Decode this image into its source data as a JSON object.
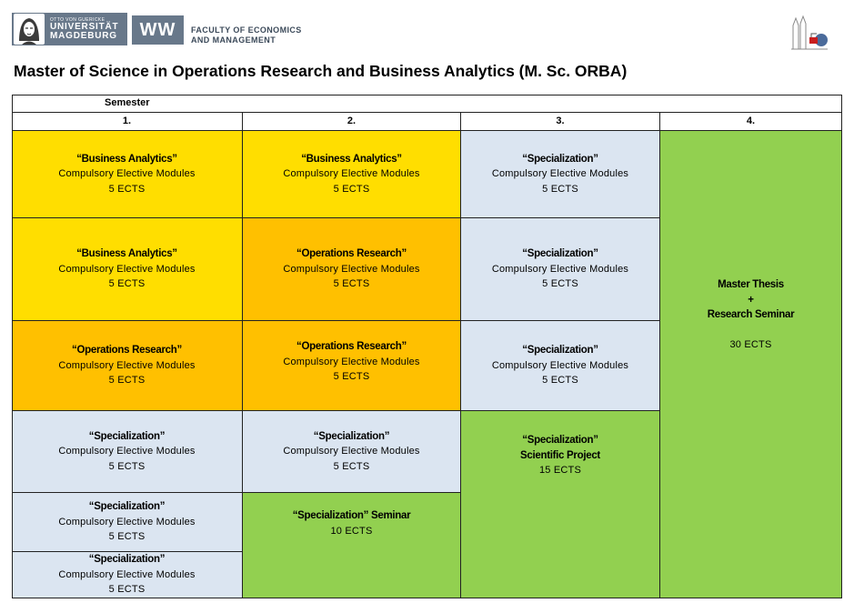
{
  "header": {
    "uni_logo": {
      "line1": "OTTO VON GUERICKE",
      "line2": "UNIVERSITÄT",
      "line3": "MAGDEBURG"
    },
    "ww_logo": "WW",
    "faculty_line1": "FACULTY OF ECONOMICS",
    "faculty_line2": "AND MANAGEMENT",
    "building_icon": "magdeburg-cathedral-icon"
  },
  "title": "Master of Science in Operations Research and Business Analytics (M. Sc. ORBA)",
  "table": {
    "semester_label": "Semester",
    "columns": [
      "1.",
      "2.",
      "3.",
      "4."
    ],
    "colors": {
      "yellow": "#ffde00",
      "orange": "#ffc000",
      "blue": "#dbe5f1",
      "green": "#92d050"
    },
    "cells": {
      "c1_r1": {
        "title": "“Business Analytics”",
        "line": "Compulsory Elective Modules",
        "ects": "5 ECTS"
      },
      "c1_r2": {
        "title": "“Business Analytics”",
        "line": "Compulsory Elective Modules",
        "ects": "5 ECTS"
      },
      "c1_r3": {
        "title": "“Operations Research”",
        "line": "Compulsory Elective Modules",
        "ects": "5 ECTS"
      },
      "c1_r4": {
        "title": "“Specialization”",
        "line": "Compulsory Elective Modules",
        "ects": "5 ECTS"
      },
      "c1_r5": {
        "title": "“Specialization”",
        "line": "Compulsory Elective Modules",
        "ects": "5 ECTS"
      },
      "c1_r6": {
        "title": "“Specialization”",
        "line": "Compulsory Elective Modules",
        "ects": "5 ECTS"
      },
      "c2_r1": {
        "title": "“Business Analytics”",
        "line": "Compulsory Elective Modules",
        "ects": "5 ECTS"
      },
      "c2_r2": {
        "title": "“Operations Research”",
        "line": "Compulsory Elective Modules",
        "ects": "5 ECTS"
      },
      "c2_r3": {
        "title": "“Operations Research”",
        "line": "Compulsory Elective Modules",
        "ects": "5 ECTS"
      },
      "c2_r4": {
        "title": "“Specialization”",
        "line": "Compulsory Elective Modules",
        "ects": "5 ECTS"
      },
      "c2_r5": {
        "title": "“Specialization” Seminar",
        "ects": "10 ECTS"
      },
      "c3_r1": {
        "title": "“Specialization”",
        "line": "Compulsory Elective Modules",
        "ects": "5 ECTS"
      },
      "c3_r2": {
        "title": "“Specialization”",
        "line": "Compulsory Elective Modules",
        "ects": "5 ECTS"
      },
      "c3_r3": {
        "title": "“Specialization”",
        "line": "Compulsory Elective Modules",
        "ects": "5 ECTS"
      },
      "c3_r4": {
        "title": "“Specialization”",
        "subtitle": "Scientific Project",
        "ects": "15 ECTS"
      },
      "c4": {
        "title1": "Master Thesis",
        "plus": "+",
        "title2": "Research Seminar",
        "ects": "30 ECTS"
      }
    }
  }
}
